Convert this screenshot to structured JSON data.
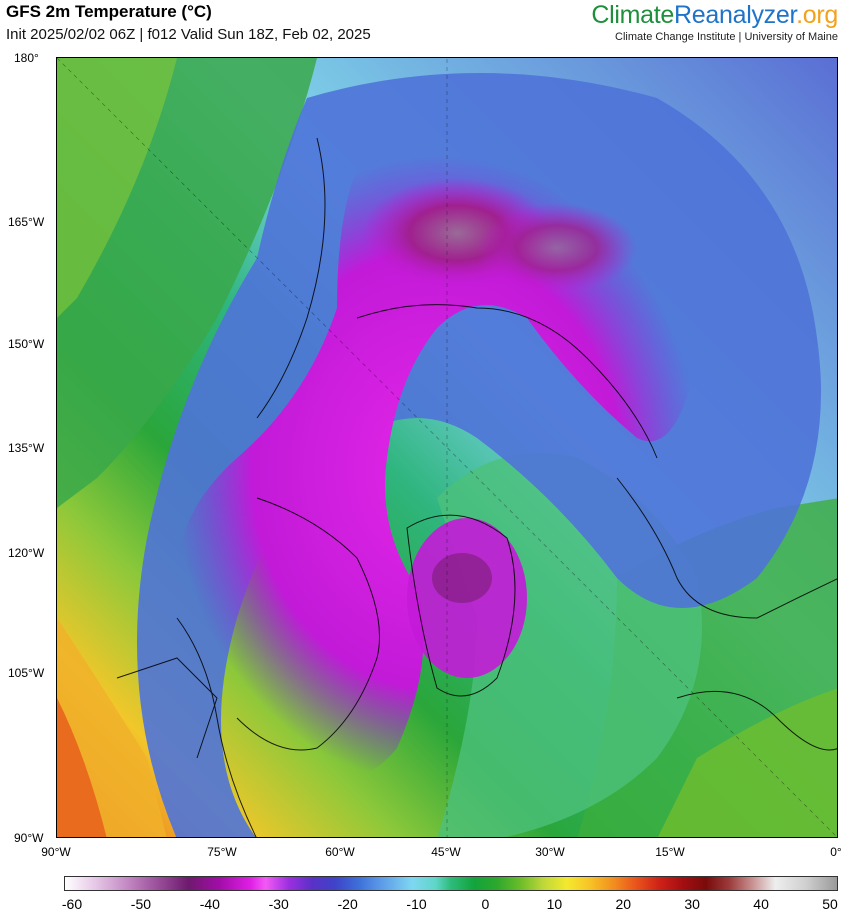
{
  "header": {
    "title": "GFS 2m Temperature (°C)",
    "subtitle": "Init 2025/02/02 06Z | f012 Valid Sun 18Z, Feb 02, 2025"
  },
  "brand": {
    "part1": "Climate",
    "part2": "Reanalyzer",
    "part3": ".org",
    "tagline": "Climate Change Institute | University of Maine",
    "colors": {
      "part1": "#1e8f3a",
      "part2": "#1f73c9",
      "part3": "#f2a21c"
    }
  },
  "map": {
    "projection": "polar stereographic",
    "lat_labels": [
      "180°",
      "165°W",
      "150°W",
      "135°W",
      "120°W",
      "105°W",
      "90°W"
    ],
    "lon_labels": [
      "90°W",
      "75°W",
      "60°W",
      "45°W",
      "30°W",
      "15°W",
      "0°"
    ]
  },
  "colorbar": {
    "tick_labels": [
      "-60",
      "-50",
      "-40",
      "-30",
      "-20",
      "-10",
      "0",
      "10",
      "20",
      "30",
      "40",
      "50"
    ],
    "range": [
      -60,
      50
    ],
    "units": "°C"
  }
}
